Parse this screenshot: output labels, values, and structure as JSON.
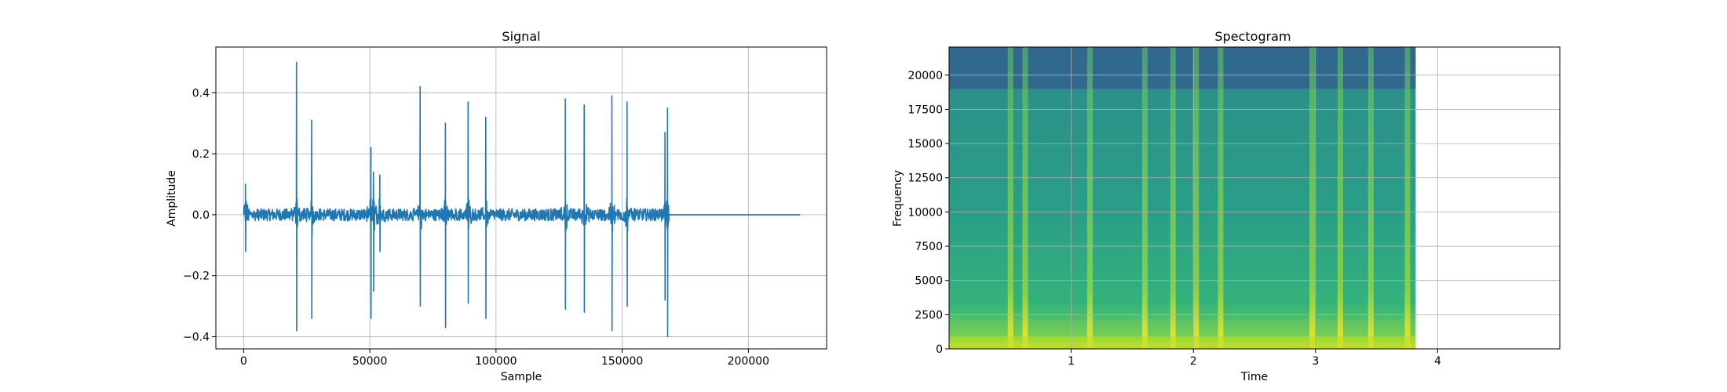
{
  "chart_data": [
    {
      "type": "line",
      "title": "Signal",
      "xlabel": "Sample",
      "ylabel": "Amplitude",
      "xlim": [
        -11000,
        231000
      ],
      "ylim": [
        -0.44,
        0.55
      ],
      "xticks": [
        0,
        50000,
        100000,
        150000,
        200000
      ],
      "xtick_labels": [
        "0",
        "50000",
        "100000",
        "150000",
        "200000"
      ],
      "yticks": [
        -0.4,
        -0.2,
        0.0,
        0.2,
        0.4
      ],
      "ytick_labels": [
        "−0.4",
        "−0.2",
        "0.0",
        "0.2",
        "0.4"
      ],
      "grid": true,
      "color": "#1f77b4",
      "series": [
        {
          "name": "",
          "spikes": [
            {
              "x": 800,
              "max": 0.1,
              "min": -0.12
            },
            {
              "x": 21000,
              "max": 0.5,
              "min": -0.38
            },
            {
              "x": 27000,
              "max": 0.31,
              "min": -0.34
            },
            {
              "x": 50500,
              "max": 0.22,
              "min": -0.34
            },
            {
              "x": 51500,
              "max": 0.14,
              "min": -0.25
            },
            {
              "x": 54000,
              "max": 0.13,
              "min": -0.12
            },
            {
              "x": 70000,
              "max": 0.42,
              "min": -0.3
            },
            {
              "x": 80000,
              "max": 0.3,
              "min": -0.37
            },
            {
              "x": 89000,
              "max": 0.37,
              "min": -0.29
            },
            {
              "x": 96000,
              "max": 0.32,
              "min": -0.34
            },
            {
              "x": 127500,
              "max": 0.38,
              "min": -0.31
            },
            {
              "x": 135000,
              "max": 0.36,
              "min": -0.32
            },
            {
              "x": 146000,
              "max": 0.39,
              "min": -0.38
            },
            {
              "x": 152000,
              "max": 0.37,
              "min": -0.3
            },
            {
              "x": 167000,
              "max": 0.27,
              "min": -0.28
            },
            {
              "x": 168000,
              "max": 0.35,
              "min": -0.4
            }
          ],
          "noise_amplitude": 0.02,
          "active_range": [
            0,
            168500
          ],
          "flat_range": [
            168500,
            220500
          ]
        }
      ]
    },
    {
      "type": "heatmap",
      "title": "Spectogram",
      "xlabel": "Time",
      "ylabel": "Frequency",
      "xlim": [
        0,
        5.0
      ],
      "ylim": [
        0,
        22050
      ],
      "xticks": [
        1,
        2,
        3,
        4
      ],
      "xtick_labels": [
        "1",
        "2",
        "3",
        "4"
      ],
      "yticks": [
        0,
        2500,
        5000,
        7500,
        10000,
        12500,
        15000,
        17500,
        20000
      ],
      "ytick_labels": [
        "0",
        "2500",
        "5000",
        "7500",
        "10000",
        "12500",
        "15000",
        "17500",
        "20000"
      ],
      "grid": true,
      "colormap": "viridis",
      "data_extent_time": [
        0,
        3.82
      ],
      "cutoff_frequency": 19000,
      "onsets": [
        0.5,
        0.62,
        1.15,
        1.6,
        1.83,
        2.02,
        2.22,
        2.97,
        3.2,
        3.45,
        3.75
      ]
    }
  ]
}
